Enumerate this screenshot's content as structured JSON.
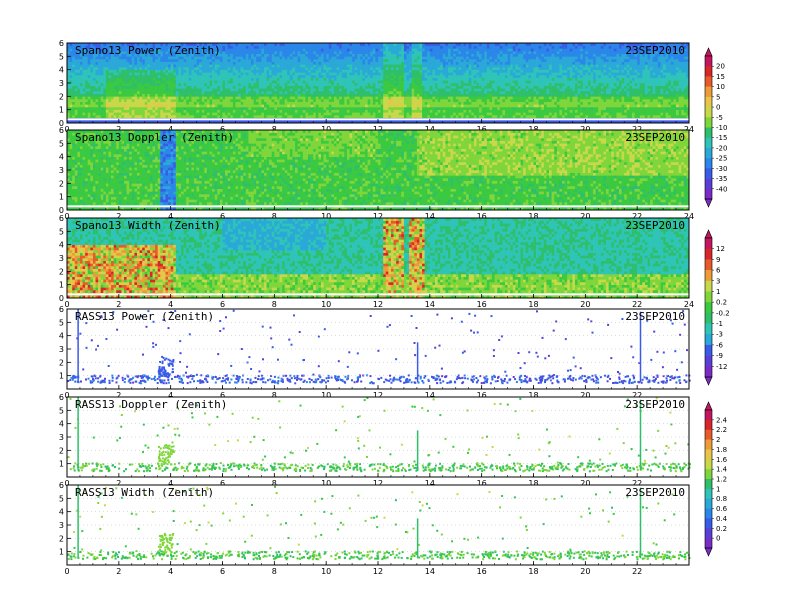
{
  "chart_data": {
    "type": "heatmap",
    "palettes": {
      "power": [
        "#7a2cc4",
        "#5a3fd6",
        "#3a5be8",
        "#2a86e8",
        "#2aa8d8",
        "#2ec4b8",
        "#2fbf6a",
        "#3ac940",
        "#7fd63a",
        "#c9d84a",
        "#e8c44a",
        "#ec9a3a",
        "#e85a2a",
        "#d8262a",
        "#c41660"
      ],
      "width": [
        "#7a2cc4",
        "#5a3fd6",
        "#3a5be8",
        "#2a86e8",
        "#2aa8d8",
        "#2ec4b8",
        "#2fbf6a",
        "#3ac940",
        "#7fd63a",
        "#c9d84a",
        "#e8c44a",
        "#ec9a3a",
        "#e85a2a",
        "#d8262a",
        "#c41660"
      ]
    },
    "panels": [
      {
        "title": "Spano13  Power  (Zenith)",
        "date": "23SEP2010",
        "xlim": [
          0,
          24
        ],
        "ylim": [
          0,
          6
        ],
        "xticks": [
          0,
          2,
          4,
          6,
          8,
          10,
          12,
          14,
          16,
          18,
          20,
          22,
          24
        ],
        "yticks": [
          0,
          1,
          2,
          3,
          4,
          5,
          6
        ],
        "kind": "spano-power",
        "bg_level": 7
      },
      {
        "title": "Spano13  Doppler  (Zenith)",
        "date": "23SEP2010",
        "xlim": [
          0,
          24
        ],
        "ylim": [
          0,
          6
        ],
        "xticks": [
          0,
          2,
          4,
          6,
          8,
          10,
          12,
          14,
          16,
          18,
          20,
          22,
          24
        ],
        "yticks": [
          0,
          1,
          2,
          3,
          4,
          5,
          6
        ],
        "kind": "spano-doppler",
        "bg_level": 7
      },
      {
        "title": "Spano13  Width  (Zenith)",
        "date": "23SEP2010",
        "xlim": [
          0,
          24
        ],
        "ylim": [
          0,
          6
        ],
        "xticks": [
          0,
          2,
          4,
          6,
          8,
          10,
          12,
          14,
          16,
          18,
          20,
          22,
          24
        ],
        "yticks": [
          0,
          1,
          2,
          3,
          4,
          5,
          6
        ],
        "kind": "spano-width",
        "bg_level": 5
      },
      {
        "title": "RASS13  Power  (Zenith)",
        "date": "23SEP2010",
        "xlim": [
          0,
          24
        ],
        "ylim": [
          0,
          6
        ],
        "xticks": [
          0,
          2,
          4,
          6,
          8,
          10,
          12,
          14,
          16,
          18,
          20,
          22
        ],
        "yticks": [
          1,
          2,
          3,
          4,
          5,
          6
        ],
        "kind": "rass-power"
      },
      {
        "title": "RASS13  Doppler  (Zenith)",
        "date": "23SEP2010",
        "xlim": [
          0,
          24
        ],
        "ylim": [
          0,
          6
        ],
        "xticks": [
          0,
          2,
          4,
          6,
          8,
          10,
          12,
          14,
          16,
          18,
          20,
          22
        ],
        "yticks": [
          1,
          2,
          3,
          4,
          5,
          6
        ],
        "kind": "rass-doppler"
      },
      {
        "title": "RASS13  Width  (Zenith)",
        "date": "23SEP2010",
        "xlim": [
          0,
          24
        ],
        "ylim": [
          0,
          6
        ],
        "xticks": [
          0,
          2,
          4,
          6,
          8,
          10,
          12,
          14,
          16,
          18,
          20,
          22
        ],
        "yticks": [
          1,
          2,
          3,
          4,
          5,
          6
        ],
        "kind": "rass-width"
      }
    ],
    "colorbars": [
      {
        "labels": [
          "20",
          "15",
          "10",
          "5",
          "0",
          "-5",
          "-10",
          "-15",
          "-20",
          "-25",
          "-30",
          "-35",
          "-40"
        ]
      },
      {
        "labels": [
          "12",
          "9",
          "6",
          "3",
          "1",
          "0.2",
          "-0.2",
          "-1",
          "-3",
          "-6",
          "-9",
          "-12"
        ]
      },
      {
        "labels": [
          "2.4",
          "2.2",
          "2",
          "1.8",
          "1.6",
          "1.4",
          "1.2",
          "1",
          "0.8",
          "0.6",
          "0.4",
          "0.2",
          "0"
        ]
      }
    ]
  }
}
